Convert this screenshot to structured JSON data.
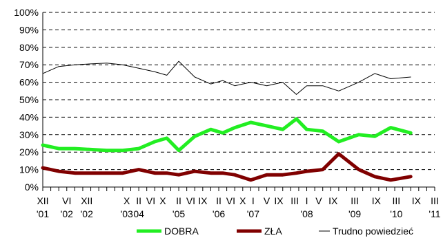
{
  "chart_data": {
    "type": "line",
    "title": "",
    "xlabel": "",
    "ylabel": "",
    "ylim": [
      0,
      100
    ],
    "y_tick_labels": [
      "0%",
      "10%",
      "20%",
      "30%",
      "40%",
      "50%",
      "60%",
      "70%",
      "80%",
      "90%",
      "100%"
    ],
    "grid": "horizontal dashed",
    "legend_position": "bottom",
    "x_labels": [
      {
        "month": "XII",
        "year": "'01",
        "idx": 0
      },
      {
        "month": "VI",
        "year": "'02",
        "idx": 3
      },
      {
        "month": "XII",
        "year": "'02",
        "idx": 5.5
      },
      {
        "month": "X",
        "year": "'03",
        "idx": 10.5
      },
      {
        "month": "II",
        "year": "04",
        "idx": 12
      },
      {
        "month": "VI",
        "year": "",
        "idx": 13.5
      },
      {
        "month": "X",
        "year": "",
        "idx": 15
      },
      {
        "month": "II",
        "year": "'05",
        "idx": 17
      },
      {
        "month": "VI",
        "year": "",
        "idx": 18.5
      },
      {
        "month": "IX",
        "year": "",
        "idx": 20
      },
      {
        "month": "II",
        "year": "'06",
        "idx": 22
      },
      {
        "month": "VI",
        "year": "",
        "idx": 23.5
      },
      {
        "month": "X",
        "year": "",
        "idx": 25
      },
      {
        "month": "I",
        "year": "'07",
        "idx": 26.3
      },
      {
        "month": "V",
        "year": "",
        "idx": 28
      },
      {
        "month": "IX",
        "year": "",
        "idx": 29.5
      },
      {
        "month": "III",
        "year": "",
        "idx": 31.5
      },
      {
        "month": "I",
        "year": "'08",
        "idx": 33
      },
      {
        "month": "V",
        "year": "",
        "idx": 34.5
      },
      {
        "month": "IX",
        "year": "",
        "idx": 36.3
      },
      {
        "month": "III",
        "year": "'09",
        "idx": 39
      },
      {
        "month": "IX",
        "year": "",
        "idx": 41.7
      },
      {
        "month": "III",
        "year": "'10",
        "idx": 44.2
      },
      {
        "month": "IX",
        "year": "",
        "idx": 46.7
      },
      {
        "month": "III",
        "year": "'11",
        "idx": 49
      }
    ],
    "tick_count": 50,
    "series": [
      {
        "name": "DOBRA",
        "color": "#22ee22",
        "stroke": "thick",
        "points": [
          [
            0,
            24
          ],
          [
            2,
            22
          ],
          [
            4,
            22
          ],
          [
            6,
            21.5
          ],
          [
            8,
            21
          ],
          [
            10,
            21
          ],
          [
            12,
            22
          ],
          [
            14,
            26
          ],
          [
            15.5,
            28
          ],
          [
            17,
            21
          ],
          [
            19,
            29
          ],
          [
            21,
            33
          ],
          [
            22.5,
            31
          ],
          [
            24,
            34
          ],
          [
            26,
            37
          ],
          [
            28,
            35
          ],
          [
            30,
            33
          ],
          [
            31.7,
            39
          ],
          [
            33,
            33
          ],
          [
            35,
            32
          ],
          [
            37,
            26
          ],
          [
            39.5,
            30
          ],
          [
            41.5,
            29
          ],
          [
            43.5,
            34
          ],
          [
            46,
            31
          ]
        ]
      },
      {
        "name": "ZŁA",
        "color": "#800000",
        "stroke": "thick",
        "points": [
          [
            0,
            11
          ],
          [
            2,
            9
          ],
          [
            4,
            8
          ],
          [
            6,
            8
          ],
          [
            8,
            8
          ],
          [
            10,
            8
          ],
          [
            12,
            10
          ],
          [
            14,
            8
          ],
          [
            15.5,
            8
          ],
          [
            17,
            7
          ],
          [
            19,
            9
          ],
          [
            21,
            8
          ],
          [
            22.5,
            8
          ],
          [
            24,
            7
          ],
          [
            26,
            4
          ],
          [
            28,
            7
          ],
          [
            30,
            7
          ],
          [
            31.7,
            8
          ],
          [
            33,
            9
          ],
          [
            35,
            10
          ],
          [
            37,
            19
          ],
          [
            39.5,
            10
          ],
          [
            41.5,
            6
          ],
          [
            43.5,
            4
          ],
          [
            46,
            6
          ]
        ]
      },
      {
        "name": "Trudno powiedzieć",
        "color": "#000000",
        "stroke": "thin",
        "points": [
          [
            0,
            65
          ],
          [
            2,
            69
          ],
          [
            4,
            70
          ],
          [
            6,
            70.5
          ],
          [
            8,
            71
          ],
          [
            10,
            70
          ],
          [
            12,
            68
          ],
          [
            14,
            66
          ],
          [
            15.5,
            64
          ],
          [
            17,
            72
          ],
          [
            19,
            63
          ],
          [
            21,
            59
          ],
          [
            22.5,
            61
          ],
          [
            24,
            58
          ],
          [
            26,
            60
          ],
          [
            28,
            58
          ],
          [
            30,
            60
          ],
          [
            31.7,
            53
          ],
          [
            33,
            58
          ],
          [
            35,
            58
          ],
          [
            37,
            55
          ],
          [
            39.5,
            60
          ],
          [
            41.5,
            65
          ],
          [
            43.5,
            62
          ],
          [
            46,
            63
          ]
        ]
      }
    ]
  }
}
